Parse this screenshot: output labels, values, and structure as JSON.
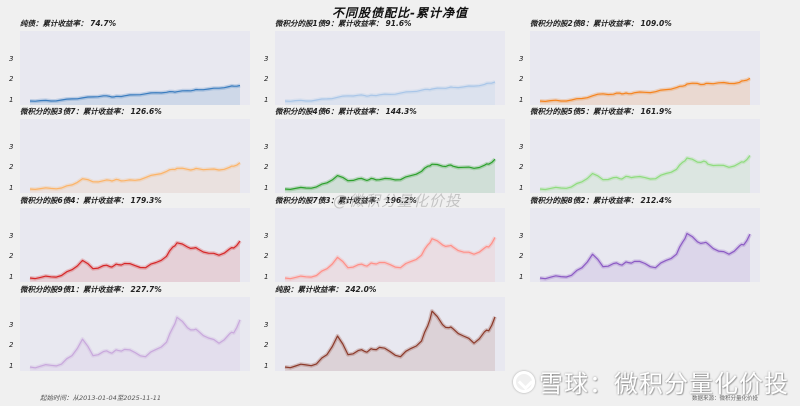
{
  "title": "不同股债配比-累计净值",
  "watermark_center": "@微积分量化价投",
  "footer": {
    "date_range": "起始时间：从2013-01-04至2025-11-11",
    "source": "数据来源：微积分量化价投"
  },
  "brand": {
    "logo": "xueqiu-logo-icon",
    "text": "雪球：微积分量化价投"
  },
  "yticks": [
    "3",
    "2",
    "1"
  ],
  "panels": [
    {
      "label": "纯债：累计收益率：  74.7%",
      "color": "#3b7dbf",
      "fill": "rgba(59,125,191,0.15)"
    },
    {
      "label": "微积分的股1债9：累计收益率：  91.6%",
      "color": "#a9c6e8",
      "fill": "rgba(169,198,232,0.18)"
    },
    {
      "label": "微积分的股2债8：累计收益率：  109.0%",
      "color": "#f5841f",
      "fill": "rgba(245,132,31,0.15)"
    },
    {
      "label": "微积分的股3债7：累计收益率：  126.6%",
      "color": "#fcb468",
      "fill": "rgba(252,180,104,0.12)"
    },
    {
      "label": "微积分的股4债6：累计收益率：  144.3%",
      "color": "#2ca02c",
      "fill": "rgba(44,160,44,0.13)"
    },
    {
      "label": "微积分的股5债5：累计收益率：  161.9%",
      "color": "#8fdc7e",
      "fill": "rgba(143,220,126,0.12)"
    },
    {
      "label": "微积分的股6债4：累计收益率：  179.3%",
      "color": "#d62728",
      "fill": "rgba(214,39,40,0.12)"
    },
    {
      "label": "微积分的股7债3：累计收益率：  196.2%",
      "color": "#ff9088",
      "fill": "rgba(255,144,136,0.12)"
    },
    {
      "label": "微积分的股8债2：累计收益率：  212.4%",
      "color": "#8c5bc4",
      "fill": "rgba(140,91,196,0.12)"
    },
    {
      "label": "微积分的股9债1：累计收益率：  227.7%",
      "color": "#c8a8dc",
      "fill": "rgba(200,168,220,0.15)"
    },
    {
      "label": "纯股：累计收益率：  242.0%",
      "color": "#8c3a2a",
      "fill": "rgba(140,58,42,0.12)"
    }
  ],
  "chart_data": {
    "type": "area",
    "title": "不同股债配比-累计净值",
    "xlabel": "",
    "ylabel": "",
    "x_range": [
      "2013-01-04",
      "2025-11-11"
    ],
    "ylim": [
      0.8,
      3.8
    ],
    "yticks": [
      1,
      2,
      3
    ],
    "grid": false,
    "x": [
      0,
      0.05,
      0.1,
      0.15,
      0.2,
      0.25,
      0.3,
      0.35,
      0.38,
      0.4,
      0.42,
      0.45,
      0.5,
      0.55,
      0.6,
      0.65,
      0.68,
      0.7,
      0.75,
      0.78,
      0.8,
      0.85,
      0.9,
      0.95,
      0.97,
      1.0
    ],
    "series": [
      {
        "name": "纯债",
        "total_return_pct": 74.7,
        "values": [
          1.0,
          1.02,
          1.0,
          1.05,
          1.1,
          1.15,
          1.2,
          1.25,
          1.22,
          1.2,
          1.22,
          1.25,
          1.3,
          1.35,
          1.4,
          1.42,
          1.45,
          1.45,
          1.5,
          1.52,
          1.55,
          1.58,
          1.62,
          1.7,
          1.72,
          1.75
        ]
      },
      {
        "name": "微积分的股1债9",
        "total_return_pct": 91.6,
        "values": [
          1.0,
          1.02,
          1.0,
          1.05,
          1.1,
          1.18,
          1.25,
          1.28,
          1.26,
          1.25,
          1.27,
          1.3,
          1.32,
          1.38,
          1.45,
          1.52,
          1.56,
          1.58,
          1.62,
          1.65,
          1.66,
          1.68,
          1.72,
          1.8,
          1.86,
          1.92
        ]
      },
      {
        "name": "微积分的股2债8",
        "total_return_pct": 109.0,
        "values": [
          1.0,
          1.02,
          1.0,
          1.05,
          1.12,
          1.25,
          1.35,
          1.33,
          1.38,
          1.36,
          1.36,
          1.4,
          1.42,
          1.45,
          1.55,
          1.65,
          1.72,
          1.82,
          1.85,
          1.8,
          1.85,
          1.88,
          1.85,
          1.9,
          1.98,
          2.09
        ]
      },
      {
        "name": "微积分的股3债7",
        "total_return_pct": 126.6,
        "values": [
          1.0,
          1.02,
          1.03,
          1.05,
          1.2,
          1.5,
          1.35,
          1.4,
          1.42,
          1.42,
          1.45,
          1.4,
          1.42,
          1.55,
          1.7,
          1.85,
          1.95,
          2.0,
          1.95,
          1.95,
          1.98,
          1.95,
          1.92,
          2.05,
          2.1,
          2.27
        ]
      },
      {
        "name": "微积分的股4债6",
        "total_return_pct": 144.3,
        "values": [
          1.0,
          1.03,
          1.05,
          1.1,
          1.3,
          1.65,
          1.4,
          1.5,
          1.45,
          1.45,
          1.5,
          1.45,
          1.5,
          1.45,
          1.65,
          1.85,
          2.1,
          2.2,
          2.1,
          2.15,
          2.1,
          2.05,
          2.0,
          2.15,
          2.2,
          2.44
        ]
      },
      {
        "name": "微积分的股5债5",
        "total_return_pct": 161.9,
        "values": [
          1.0,
          1.03,
          1.05,
          1.1,
          1.35,
          1.75,
          1.45,
          1.55,
          1.5,
          1.55,
          1.6,
          1.58,
          1.55,
          1.5,
          1.75,
          1.95,
          2.3,
          2.5,
          2.3,
          2.35,
          2.2,
          2.15,
          2.05,
          2.25,
          2.3,
          2.62
        ]
      },
      {
        "name": "微积分的股6债4",
        "total_return_pct": 179.3,
        "values": [
          1.0,
          1.03,
          1.06,
          1.12,
          1.4,
          1.85,
          1.45,
          1.6,
          1.55,
          1.6,
          1.65,
          1.7,
          1.6,
          1.5,
          1.75,
          2.05,
          2.5,
          2.7,
          2.5,
          2.45,
          2.4,
          2.2,
          2.1,
          2.4,
          2.45,
          2.79
        ]
      },
      {
        "name": "微积分的股7债3",
        "total_return_pct": 196.2,
        "values": [
          1.0,
          1.03,
          1.06,
          1.12,
          1.45,
          2.0,
          1.5,
          1.65,
          1.6,
          1.65,
          1.7,
          1.75,
          1.65,
          1.5,
          1.8,
          2.1,
          2.6,
          2.9,
          2.6,
          2.55,
          2.5,
          2.25,
          2.15,
          2.45,
          2.5,
          2.96
        ]
      },
      {
        "name": "微积分的股8债2",
        "total_return_pct": 212.4,
        "values": [
          1.0,
          1.04,
          1.07,
          1.13,
          1.5,
          2.15,
          1.55,
          1.7,
          1.65,
          1.7,
          1.75,
          1.8,
          1.7,
          1.5,
          1.85,
          2.15,
          2.75,
          3.15,
          2.75,
          2.7,
          2.65,
          2.3,
          2.15,
          2.55,
          2.6,
          3.12
        ]
      },
      {
        "name": "微积分的股9债1",
        "total_return_pct": 227.7,
        "values": [
          1.0,
          1.04,
          1.08,
          1.14,
          1.55,
          2.35,
          1.55,
          1.75,
          1.7,
          1.75,
          1.8,
          1.85,
          1.7,
          1.5,
          1.85,
          2.2,
          2.9,
          3.4,
          2.9,
          2.8,
          2.75,
          2.4,
          2.15,
          2.6,
          2.65,
          3.28
        ]
      },
      {
        "name": "纯股",
        "total_return_pct": 242.0,
        "values": [
          1.0,
          1.05,
          1.1,
          1.15,
          1.6,
          2.5,
          1.6,
          1.8,
          1.75,
          1.8,
          1.85,
          1.95,
          1.75,
          1.5,
          1.9,
          2.25,
          3.0,
          3.7,
          3.05,
          2.9,
          2.85,
          2.5,
          2.15,
          2.7,
          2.75,
          3.42
        ]
      }
    ]
  }
}
